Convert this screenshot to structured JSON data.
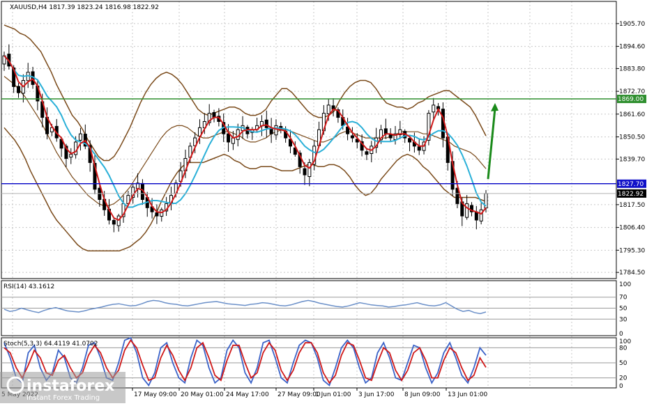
{
  "chart_data": [
    {
      "type": "candlestick",
      "symbol_header": "XAUUSD,H4  1817.39 1823.24 1816.98 1822.92",
      "price_ticks": [
        "1905.70",
        "1894.60",
        "1883.80",
        "1872.70",
        "1861.60",
        "1850.50",
        "1839.70",
        "1817.50",
        "1806.40",
        "1795.30",
        "1784.50"
      ],
      "ylim": [
        1781.5,
        1916.5
      ],
      "x_labels": [
        "17 May 09:00",
        "20 May 01:00",
        "24 May 17:00",
        "27 May 09:00",
        "1 Jun 01:00",
        "3 Jun 17:00",
        "8 Jun 09:00",
        "13 Jun 01:00"
      ],
      "left_edge_label": "5 May 2022",
      "horizontal_levels": [
        {
          "value": 1869.0,
          "label": "1869.00",
          "color": "#2f8f2f"
        },
        {
          "value": 1827.7,
          "label": "1827.70",
          "color": "#1010c8"
        }
      ],
      "current_price": {
        "value": 1822.92,
        "label": "1822.92"
      },
      "forecast_arrow": {
        "from": 1830,
        "to": 1867,
        "color": "#1a8a1a"
      },
      "close": [
        1890,
        1885,
        1875,
        1872,
        1878,
        1882,
        1876,
        1868,
        1860,
        1852,
        1855,
        1850,
        1845,
        1840,
        1842,
        1848,
        1852,
        1846,
        1838,
        1825,
        1820,
        1815,
        1810,
        1808,
        1812,
        1818,
        1822,
        1826,
        1828,
        1820,
        1816,
        1814,
        1812,
        1815,
        1818,
        1822,
        1828,
        1834,
        1840,
        1846,
        1850,
        1855,
        1858,
        1862,
        1860,
        1858,
        1852,
        1848,
        1850,
        1854,
        1856,
        1852,
        1854,
        1856,
        1858,
        1855,
        1852,
        1856,
        1854,
        1850,
        1846,
        1842,
        1836,
        1832,
        1838,
        1846,
        1854,
        1862,
        1866,
        1864,
        1860,
        1856,
        1852,
        1850,
        1848,
        1844,
        1842,
        1846,
        1850,
        1854,
        1852,
        1850,
        1852,
        1854,
        1850,
        1848,
        1846,
        1844,
        1848,
        1862,
        1866,
        1864,
        1850,
        1838,
        1825,
        1818,
        1812,
        1818,
        1814,
        1810,
        1815,
        1822.92
      ],
      "band_mid": [
        1880,
        1878,
        1876,
        1873,
        1870,
        1866,
        1862,
        1858,
        1853,
        1848,
        1843,
        1839,
        1835,
        1831,
        1828,
        1825,
        1822,
        1820,
        1818,
        1817,
        1817,
        1818,
        1820,
        1823,
        1826,
        1830,
        1834,
        1838,
        1842,
        1846,
        1850,
        1853,
        1855,
        1856,
        1856,
        1855,
        1853,
        1851,
        1850,
        1850,
        1851,
        1852,
        1853,
        1853,
        1852,
        1851,
        1849,
        1848,
        1848,
        1849,
        1850,
        1852,
        1853,
        1854,
        1854,
        1853,
        1852,
        1851,
        1850,
        1849,
        1848,
        1848,
        1849,
        1850,
        1852,
        1853,
        1853,
        1852,
        1851,
        1850,
        1850,
        1850,
        1850,
        1850,
        1851,
        1852,
        1853,
        1853,
        1853,
        1853,
        1852,
        1852,
        1851,
        1850,
        1849,
        1848,
        1846,
        1845,
        1844,
        1843,
        1841,
        1838,
        1835
      ],
      "band_width": [
        25,
        26,
        27,
        28,
        30,
        32,
        33,
        34,
        34,
        34,
        33,
        32,
        31,
        30,
        30,
        29,
        27,
        25,
        23,
        22,
        22,
        23,
        25,
        27,
        29,
        31,
        33,
        34,
        34,
        33,
        31,
        29,
        26,
        23,
        20,
        17,
        15,
        13,
        12,
        11,
        11,
        11,
        11,
        12,
        13,
        13,
        13,
        13,
        13,
        13,
        14,
        16,
        18,
        20,
        20,
        19,
        17,
        15,
        13,
        12,
        12,
        12,
        12,
        13,
        16,
        19,
        22,
        25,
        27,
        28,
        27,
        24,
        20,
        17,
        15,
        13,
        12,
        11,
        12,
        14,
        16,
        18,
        20,
        22,
        24,
        25,
        25,
        24,
        23,
        22,
        20,
        18,
        16
      ],
      "rsi": [
        48,
        44,
        46,
        50,
        47,
        44,
        42,
        46,
        49,
        51,
        48,
        45,
        44,
        43,
        45,
        48,
        50,
        52,
        55,
        57,
        58,
        56,
        54,
        55,
        58,
        62,
        64,
        63,
        60,
        58,
        57,
        55,
        54,
        56,
        58,
        60,
        61,
        62,
        60,
        58,
        57,
        56,
        55,
        57,
        58,
        60,
        59,
        57,
        55,
        54,
        56,
        59,
        62,
        64,
        62,
        59,
        57,
        55,
        53,
        52,
        54,
        57,
        60,
        58,
        56,
        55,
        54,
        52,
        53,
        55,
        56,
        58,
        60,
        57,
        55,
        54,
        56,
        60,
        54,
        48,
        44,
        46,
        42,
        40,
        43
      ],
      "rsi_header": "RSI(14) 43.1612",
      "rsi_ticks": [
        "100",
        "70",
        "50",
        "30",
        "0"
      ],
      "stoch_header": "Stoch(5,3,3) 64.4119 41.0702",
      "stoch_ticks": [
        "100",
        "80",
        "50",
        "20",
        "0"
      ],
      "stoch_k": [
        90,
        60,
        20,
        10,
        70,
        85,
        40,
        15,
        30,
        75,
        60,
        20,
        10,
        40,
        85,
        90,
        60,
        20,
        15,
        50,
        95,
        100,
        70,
        20,
        5,
        30,
        80,
        90,
        50,
        20,
        10,
        60,
        95,
        85,
        40,
        10,
        20,
        75,
        95,
        80,
        30,
        10,
        40,
        90,
        95,
        60,
        20,
        10,
        50,
        85,
        95,
        90,
        60,
        15,
        5,
        40,
        80,
        95,
        80,
        40,
        10,
        20,
        70,
        90,
        60,
        20,
        15,
        50,
        85,
        80,
        40,
        10,
        30,
        70,
        90,
        60,
        25,
        10,
        40,
        80,
        65
      ],
      "stoch_d": [
        80,
        70,
        40,
        20,
        45,
        75,
        60,
        30,
        25,
        55,
        65,
        40,
        20,
        30,
        65,
        85,
        70,
        40,
        20,
        35,
        75,
        95,
        80,
        45,
        15,
        20,
        60,
        85,
        65,
        35,
        15,
        40,
        80,
        90,
        60,
        25,
        15,
        55,
        85,
        85,
        50,
        20,
        30,
        70,
        90,
        75,
        35,
        15,
        35,
        70,
        90,
        90,
        70,
        30,
        10,
        25,
        65,
        90,
        85,
        55,
        20,
        15,
        50,
        80,
        70,
        35,
        15,
        35,
        70,
        80,
        55,
        20,
        20,
        55,
        80,
        70,
        40,
        15,
        25,
        60,
        41
      ]
    }
  ],
  "watermark": {
    "brand": "instaforex",
    "tagline": "Instant Forex Trading"
  }
}
